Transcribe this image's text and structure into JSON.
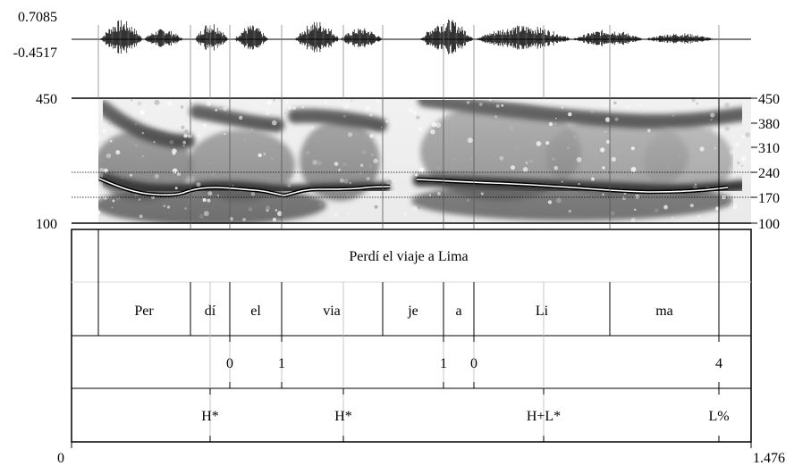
{
  "waveform": {
    "amp_max": "0.7085",
    "amp_min": "-0.4517"
  },
  "spectrogram": {
    "left_labels": {
      "top": "450",
      "bottom": "100"
    },
    "right_ticks": [
      "450",
      "380",
      "310",
      "240",
      "170",
      "100"
    ]
  },
  "tiers": {
    "phrase": "Perdí el viaje a Lima",
    "syllables": [
      "Per",
      "dí",
      "el",
      "via",
      "je",
      "a",
      "Li",
      "ma"
    ],
    "break_indices": [
      "0",
      "1",
      "1",
      "0",
      "4"
    ],
    "tones": [
      "H*",
      "H*",
      "H+L*",
      "L%"
    ]
  },
  "time_axis": {
    "start": "0",
    "end": "1.476"
  },
  "colors": {
    "ink": "#000000",
    "pitch_track": "#ffffff",
    "guide": "#888888"
  }
}
